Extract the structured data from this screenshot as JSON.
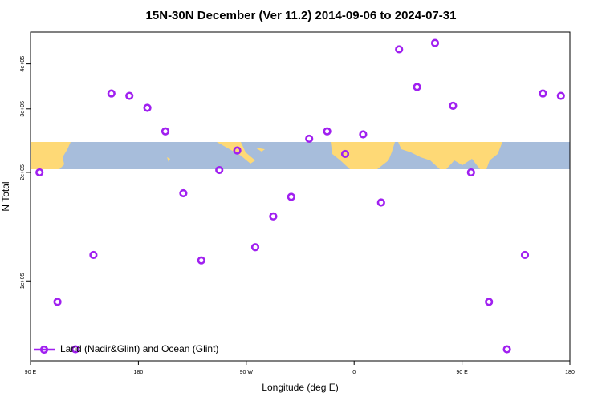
{
  "chart_data": {
    "type": "scatter",
    "title": "15N-30N December (Ver 11.2)   2014-09-06 to 2024-07-31",
    "x_label": "Longitude (deg E)",
    "y_label": "N Total",
    "log_y": true,
    "legend": "bottom-left",
    "xlim": [
      90,
      540
    ],
    "xticks": [
      {
        "value": 90,
        "label": "90 E"
      },
      180,
      {
        "value": 270,
        "label": "90 W"
      },
      {
        "value": 360,
        "label": "0"
      },
      {
        "value": 450,
        "label": "90 E"
      },
      {
        "value": 540,
        "label": "180"
      }
    ],
    "ylim": [
      60000,
      490000
    ],
    "yticks": [
      {
        "value": 100000,
        "label": "1e+05"
      },
      {
        "value": 200000,
        "label": "2e+05"
      },
      {
        "value": 300000,
        "label": "3e+05"
      },
      {
        "value": 400000,
        "label": "4e+05"
      }
    ],
    "series": [
      {
        "name": "Land (Nadir&Glint) and Ocean (Glint)",
        "color": "#a020f0",
        "x": [
          97.5,
          112.5,
          127.5,
          142.5,
          157.5,
          172.5,
          187.5,
          202.5,
          217.5,
          232.5,
          247.5,
          262.5,
          277.5,
          292.5,
          307.5,
          322.5,
          337.5,
          352.5,
          367.5,
          382.5,
          397.5,
          412.5,
          427.5,
          442.5,
          457.5,
          472.5,
          487.5,
          502.5,
          517.5,
          532.5
        ],
        "values": [
          200000,
          87500,
          64600,
          118000,
          331000,
          326000,
          302000,
          260000,
          175000,
          114000,
          203000,
          230000,
          124000,
          151000,
          171000,
          248000,
          260000,
          225000,
          255000,
          165000,
          439000,
          345000,
          457000,
          306000,
          200000,
          87500,
          64600,
          118000,
          331000,
          326000
        ]
      }
    ]
  }
}
